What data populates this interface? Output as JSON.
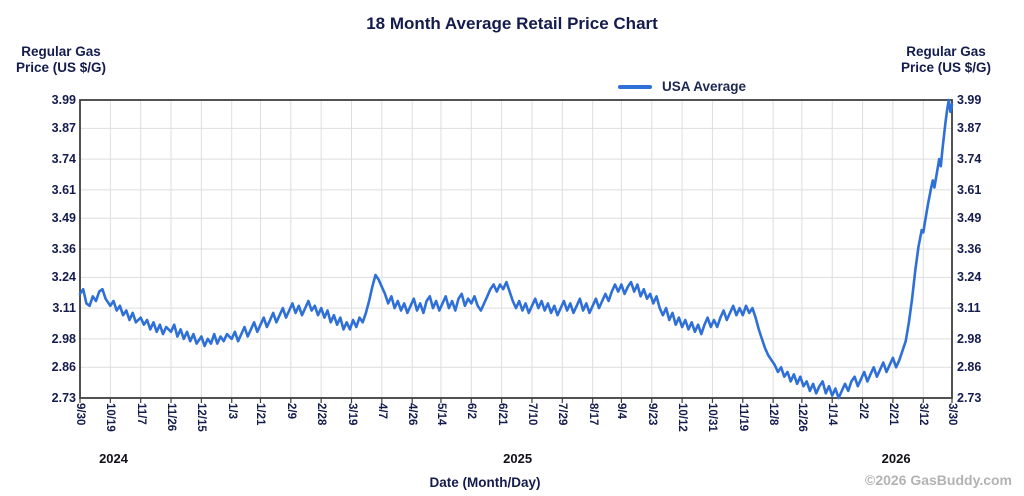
{
  "title": "18 Month Average Retail Price Chart",
  "y_axis": {
    "title_line1": "Regular Gas",
    "title_line2": "Price (US $/G)"
  },
  "x_axis": {
    "title": "Date (Month/Day)"
  },
  "legend": {
    "label": "USA Average"
  },
  "footer": {
    "copyright": "©2026 GasBuddy.com"
  },
  "colors": {
    "line": "#2e6fd8",
    "text_navy": "#141b4d",
    "grid": "#dedede",
    "border": "#3f3f3f",
    "copyright_gray": "#b3b3b3"
  },
  "chart_data": {
    "type": "line",
    "title": "18 Month Average Retail Price Chart",
    "xlabel": "Date (Month/Day)",
    "ylabel": "Regular Gas Price (US $/G)",
    "legend_entries": [
      "USA Average"
    ],
    "legend_position": "top",
    "grid": true,
    "ylim": [
      2.73,
      3.99
    ],
    "y_ticks": [
      3.99,
      3.87,
      3.74,
      3.61,
      3.49,
      3.36,
      3.24,
      3.11,
      2.98,
      2.86,
      2.73
    ],
    "x_tick_labels": [
      "9/30",
      "10/19",
      "11/7",
      "11/26",
      "12/15",
      "1/3",
      "1/21",
      "2/9",
      "2/28",
      "3/19",
      "4/7",
      "4/26",
      "5/14",
      "6/2",
      "6/21",
      "7/10",
      "7/29",
      "8/17",
      "9/4",
      "9/23",
      "10/12",
      "10/31",
      "11/19",
      "12/8",
      "12/26",
      "1/14",
      "2/2",
      "2/21",
      "3/12",
      "3/30"
    ],
    "x_tick_days": [
      0,
      19,
      38,
      57,
      76,
      95,
      113,
      132,
      151,
      170,
      189,
      208,
      226,
      245,
      264,
      283,
      302,
      321,
      339,
      358,
      377,
      396,
      415,
      434,
      452,
      471,
      490,
      509,
      528,
      546
    ],
    "x_range_days": [
      0,
      546
    ],
    "x_start_date": "9/30/2024",
    "x_end_date": "3/30/2026",
    "years": [
      {
        "label": "2024",
        "day": 21
      },
      {
        "label": "2025",
        "day": 274
      },
      {
        "label": "2026",
        "day": 511
      }
    ],
    "series": [
      {
        "name": "USA Average",
        "color": "#2e6fd8",
        "points": [
          [
            0,
            3.17
          ],
          [
            2,
            3.19
          ],
          [
            4,
            3.13
          ],
          [
            6,
            3.12
          ],
          [
            8,
            3.16
          ],
          [
            10,
            3.14
          ],
          [
            12,
            3.18
          ],
          [
            14,
            3.19
          ],
          [
            16,
            3.15
          ],
          [
            19,
            3.12
          ],
          [
            21,
            3.14
          ],
          [
            23,
            3.1
          ],
          [
            25,
            3.12
          ],
          [
            27,
            3.08
          ],
          [
            29,
            3.1
          ],
          [
            31,
            3.06
          ],
          [
            33,
            3.09
          ],
          [
            35,
            3.05
          ],
          [
            38,
            3.07
          ],
          [
            40,
            3.04
          ],
          [
            42,
            3.06
          ],
          [
            44,
            3.02
          ],
          [
            46,
            3.05
          ],
          [
            48,
            3.01
          ],
          [
            50,
            3.04
          ],
          [
            52,
            3.0
          ],
          [
            54,
            3.03
          ],
          [
            57,
            3.01
          ],
          [
            59,
            3.04
          ],
          [
            61,
            2.99
          ],
          [
            63,
            3.02
          ],
          [
            65,
            2.98
          ],
          [
            67,
            3.01
          ],
          [
            69,
            2.97
          ],
          [
            71,
            3.0
          ],
          [
            73,
            2.96
          ],
          [
            76,
            2.99
          ],
          [
            78,
            2.95
          ],
          [
            80,
            2.98
          ],
          [
            82,
            2.96
          ],
          [
            84,
            3.0
          ],
          [
            86,
            2.96
          ],
          [
            88,
            2.99
          ],
          [
            90,
            2.97
          ],
          [
            92,
            3.0
          ],
          [
            95,
            2.98
          ],
          [
            97,
            3.01
          ],
          [
            99,
            2.97
          ],
          [
            101,
            3.0
          ],
          [
            103,
            3.03
          ],
          [
            105,
            2.99
          ],
          [
            107,
            3.02
          ],
          [
            109,
            3.05
          ],
          [
            111,
            3.01
          ],
          [
            113,
            3.04
          ],
          [
            115,
            3.07
          ],
          [
            117,
            3.03
          ],
          [
            119,
            3.06
          ],
          [
            121,
            3.09
          ],
          [
            123,
            3.05
          ],
          [
            125,
            3.08
          ],
          [
            127,
            3.11
          ],
          [
            129,
            3.07
          ],
          [
            131,
            3.1
          ],
          [
            133,
            3.13
          ],
          [
            135,
            3.09
          ],
          [
            137,
            3.12
          ],
          [
            139,
            3.08
          ],
          [
            141,
            3.11
          ],
          [
            143,
            3.14
          ],
          [
            145,
            3.1
          ],
          [
            147,
            3.12
          ],
          [
            149,
            3.08
          ],
          [
            151,
            3.11
          ],
          [
            153,
            3.07
          ],
          [
            155,
            3.1
          ],
          [
            157,
            3.05
          ],
          [
            159,
            3.08
          ],
          [
            161,
            3.04
          ],
          [
            163,
            3.07
          ],
          [
            165,
            3.02
          ],
          [
            167,
            3.05
          ],
          [
            169,
            3.02
          ],
          [
            171,
            3.06
          ],
          [
            173,
            3.03
          ],
          [
            175,
            3.07
          ],
          [
            177,
            3.05
          ],
          [
            179,
            3.09
          ],
          [
            181,
            3.14
          ],
          [
            183,
            3.2
          ],
          [
            185,
            3.25
          ],
          [
            187,
            3.23
          ],
          [
            189,
            3.2
          ],
          [
            191,
            3.17
          ],
          [
            193,
            3.13
          ],
          [
            195,
            3.16
          ],
          [
            197,
            3.11
          ],
          [
            199,
            3.14
          ],
          [
            201,
            3.1
          ],
          [
            203,
            3.13
          ],
          [
            205,
            3.09
          ],
          [
            207,
            3.12
          ],
          [
            209,
            3.15
          ],
          [
            211,
            3.1
          ],
          [
            213,
            3.13
          ],
          [
            215,
            3.09
          ],
          [
            217,
            3.14
          ],
          [
            219,
            3.16
          ],
          [
            221,
            3.11
          ],
          [
            223,
            3.14
          ],
          [
            225,
            3.1
          ],
          [
            227,
            3.13
          ],
          [
            229,
            3.16
          ],
          [
            231,
            3.11
          ],
          [
            233,
            3.14
          ],
          [
            235,
            3.1
          ],
          [
            237,
            3.15
          ],
          [
            239,
            3.17
          ],
          [
            241,
            3.12
          ],
          [
            243,
            3.15
          ],
          [
            245,
            3.13
          ],
          [
            247,
            3.16
          ],
          [
            249,
            3.12
          ],
          [
            251,
            3.1
          ],
          [
            253,
            3.13
          ],
          [
            255,
            3.16
          ],
          [
            257,
            3.19
          ],
          [
            259,
            3.21
          ],
          [
            261,
            3.18
          ],
          [
            263,
            3.21
          ],
          [
            265,
            3.19
          ],
          [
            267,
            3.22
          ],
          [
            269,
            3.18
          ],
          [
            271,
            3.14
          ],
          [
            273,
            3.11
          ],
          [
            275,
            3.14
          ],
          [
            277,
            3.1
          ],
          [
            279,
            3.13
          ],
          [
            281,
            3.09
          ],
          [
            283,
            3.12
          ],
          [
            285,
            3.15
          ],
          [
            287,
            3.11
          ],
          [
            289,
            3.14
          ],
          [
            291,
            3.1
          ],
          [
            293,
            3.13
          ],
          [
            295,
            3.09
          ],
          [
            297,
            3.12
          ],
          [
            299,
            3.08
          ],
          [
            301,
            3.11
          ],
          [
            303,
            3.14
          ],
          [
            305,
            3.1
          ],
          [
            307,
            3.13
          ],
          [
            309,
            3.09
          ],
          [
            311,
            3.12
          ],
          [
            313,
            3.15
          ],
          [
            315,
            3.1
          ],
          [
            317,
            3.13
          ],
          [
            319,
            3.09
          ],
          [
            321,
            3.12
          ],
          [
            323,
            3.15
          ],
          [
            325,
            3.11
          ],
          [
            327,
            3.14
          ],
          [
            329,
            3.17
          ],
          [
            331,
            3.14
          ],
          [
            333,
            3.18
          ],
          [
            335,
            3.21
          ],
          [
            337,
            3.18
          ],
          [
            339,
            3.21
          ],
          [
            341,
            3.17
          ],
          [
            343,
            3.2
          ],
          [
            345,
            3.22
          ],
          [
            347,
            3.18
          ],
          [
            349,
            3.21
          ],
          [
            351,
            3.16
          ],
          [
            353,
            3.19
          ],
          [
            355,
            3.15
          ],
          [
            357,
            3.17
          ],
          [
            359,
            3.13
          ],
          [
            361,
            3.16
          ],
          [
            363,
            3.11
          ],
          [
            365,
            3.08
          ],
          [
            367,
            3.11
          ],
          [
            369,
            3.06
          ],
          [
            371,
            3.09
          ],
          [
            373,
            3.04
          ],
          [
            375,
            3.07
          ],
          [
            377,
            3.03
          ],
          [
            379,
            3.06
          ],
          [
            381,
            3.02
          ],
          [
            383,
            3.05
          ],
          [
            385,
            3.01
          ],
          [
            387,
            3.04
          ],
          [
            389,
            3.0
          ],
          [
            391,
            3.04
          ],
          [
            393,
            3.07
          ],
          [
            395,
            3.03
          ],
          [
            397,
            3.06
          ],
          [
            399,
            3.03
          ],
          [
            401,
            3.07
          ],
          [
            403,
            3.1
          ],
          [
            405,
            3.06
          ],
          [
            407,
            3.09
          ],
          [
            409,
            3.12
          ],
          [
            411,
            3.08
          ],
          [
            413,
            3.11
          ],
          [
            415,
            3.08
          ],
          [
            417,
            3.12
          ],
          [
            419,
            3.09
          ],
          [
            421,
            3.11
          ],
          [
            423,
            3.07
          ],
          [
            425,
            3.02
          ],
          [
            427,
            2.98
          ],
          [
            429,
            2.94
          ],
          [
            431,
            2.91
          ],
          [
            433,
            2.89
          ],
          [
            435,
            2.87
          ],
          [
            437,
            2.84
          ],
          [
            439,
            2.86
          ],
          [
            441,
            2.82
          ],
          [
            443,
            2.84
          ],
          [
            445,
            2.8
          ],
          [
            447,
            2.83
          ],
          [
            449,
            2.79
          ],
          [
            451,
            2.82
          ],
          [
            453,
            2.78
          ],
          [
            455,
            2.8
          ],
          [
            457,
            2.76
          ],
          [
            459,
            2.79
          ],
          [
            461,
            2.75
          ],
          [
            463,
            2.78
          ],
          [
            465,
            2.8
          ],
          [
            467,
            2.75
          ],
          [
            469,
            2.78
          ],
          [
            471,
            2.74
          ],
          [
            473,
            2.77
          ],
          [
            475,
            2.73
          ],
          [
            477,
            2.76
          ],
          [
            479,
            2.79
          ],
          [
            481,
            2.76
          ],
          [
            483,
            2.8
          ],
          [
            485,
            2.82
          ],
          [
            487,
            2.78
          ],
          [
            489,
            2.81
          ],
          [
            491,
            2.84
          ],
          [
            493,
            2.8
          ],
          [
            495,
            2.83
          ],
          [
            497,
            2.86
          ],
          [
            499,
            2.82
          ],
          [
            501,
            2.85
          ],
          [
            503,
            2.88
          ],
          [
            505,
            2.84
          ],
          [
            507,
            2.87
          ],
          [
            509,
            2.9
          ],
          [
            511,
            2.86
          ],
          [
            513,
            2.89
          ],
          [
            515,
            2.93
          ],
          [
            517,
            2.97
          ],
          [
            519,
            3.05
          ],
          [
            521,
            3.15
          ],
          [
            523,
            3.27
          ],
          [
            525,
            3.37
          ],
          [
            527,
            3.44
          ],
          [
            528,
            3.43
          ],
          [
            529,
            3.47
          ],
          [
            531,
            3.55
          ],
          [
            533,
            3.62
          ],
          [
            534,
            3.65
          ],
          [
            535,
            3.62
          ],
          [
            537,
            3.7
          ],
          [
            538,
            3.74
          ],
          [
            539,
            3.71
          ],
          [
            540,
            3.78
          ],
          [
            541,
            3.84
          ],
          [
            542,
            3.9
          ],
          [
            543,
            3.95
          ],
          [
            544,
            3.99
          ],
          [
            545,
            3.94
          ],
          [
            546,
            3.97
          ]
        ]
      }
    ]
  }
}
